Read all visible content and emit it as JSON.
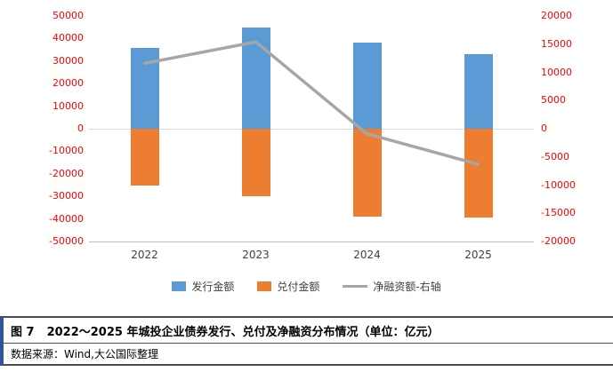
{
  "chart_data": {
    "type": "bar",
    "subtype": "bar-line-combo",
    "categories": [
      "2022",
      "2023",
      "2024",
      "2025"
    ],
    "series": [
      {
        "name": "发行金额",
        "type": "bar",
        "axis": "left",
        "color": "#5B9BD5",
        "values": [
          36000,
          45000,
          38000,
          33000
        ]
      },
      {
        "name": "兑付金额",
        "type": "bar",
        "axis": "left",
        "color": "#ED7D31",
        "values": [
          -25000,
          -30000,
          -39000,
          -39500
        ]
      },
      {
        "name": "净融资额-右轴",
        "type": "line",
        "axis": "right",
        "color": "#A6A6A6",
        "values": [
          11600,
          15400,
          -900,
          -6300
        ]
      }
    ],
    "left_axis": {
      "min": -50000,
      "max": 50000,
      "ticks": [
        50000,
        40000,
        30000,
        20000,
        10000,
        0,
        -10000,
        -20000,
        -30000,
        -40000,
        -50000
      ]
    },
    "right_axis": {
      "min": -20000,
      "max": 20000,
      "ticks": [
        20000,
        15000,
        10000,
        5000,
        0,
        -5000,
        -10000,
        -15000,
        -20000
      ]
    },
    "title": "",
    "xlabel": "",
    "ylabel": "",
    "legend_position": "bottom",
    "grid": false
  },
  "colors": {
    "bar_issuance": "#5B9BD5",
    "bar_repayment": "#ED7D31",
    "line_net_financing": "#A6A6A6",
    "axis_tick_label": "#FF0000",
    "caption_stripe": "#2F5597"
  },
  "caption": {
    "label": "图 7",
    "text": "2022～2025 年城投企业债券发行、兑付及净融资分布情况（单位：亿元）"
  },
  "source": {
    "text": "数据来源：Wind,大公国际整理"
  }
}
